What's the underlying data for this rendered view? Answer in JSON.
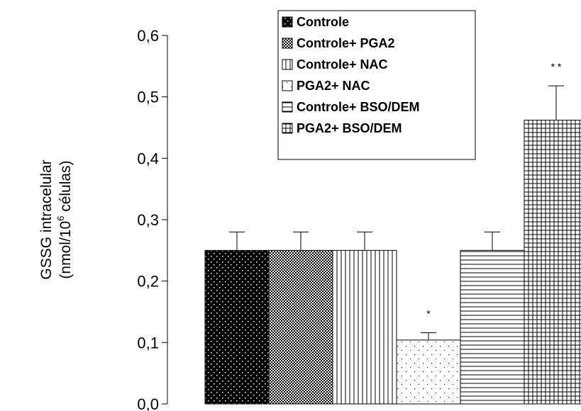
{
  "chart_data": {
    "type": "bar",
    "ylabel_line1": "GSSG intracelular",
    "ylabel_line2_prefix": "(nmol/10",
    "ylabel_line2_sup": "6",
    "ylabel_line2_suffix": " células)",
    "ylim": [
      0,
      0.6
    ],
    "yticks": [
      "0,0",
      "0,1",
      "0,2",
      "0,3",
      "0,4",
      "0,5",
      "0,6"
    ],
    "grid": false,
    "legend_position": "top-center",
    "series": [
      {
        "name": "Controle",
        "value": 0.25,
        "error": 0.03,
        "annotation": "",
        "pattern": "dense-dots-black"
      },
      {
        "name": "Controle+ PGA2",
        "value": 0.25,
        "error": 0.03,
        "annotation": "",
        "pattern": "checker-dots"
      },
      {
        "name": "Controle+ NAC",
        "value": 0.25,
        "error": 0.03,
        "annotation": "",
        "pattern": "vertical-lines"
      },
      {
        "name": "PGA2+ NAC",
        "value": 0.104,
        "error": 0.012,
        "annotation": "*",
        "pattern": "sparse-dots"
      },
      {
        "name": "Controle+ BSO/DEM",
        "value": 0.25,
        "error": 0.03,
        "annotation": "",
        "pattern": "horizontal-lines"
      },
      {
        "name": "PGA2+ BSO/DEM",
        "value": 0.462,
        "error": 0.056,
        "annotation": "* *",
        "pattern": "grid-lines"
      }
    ]
  }
}
